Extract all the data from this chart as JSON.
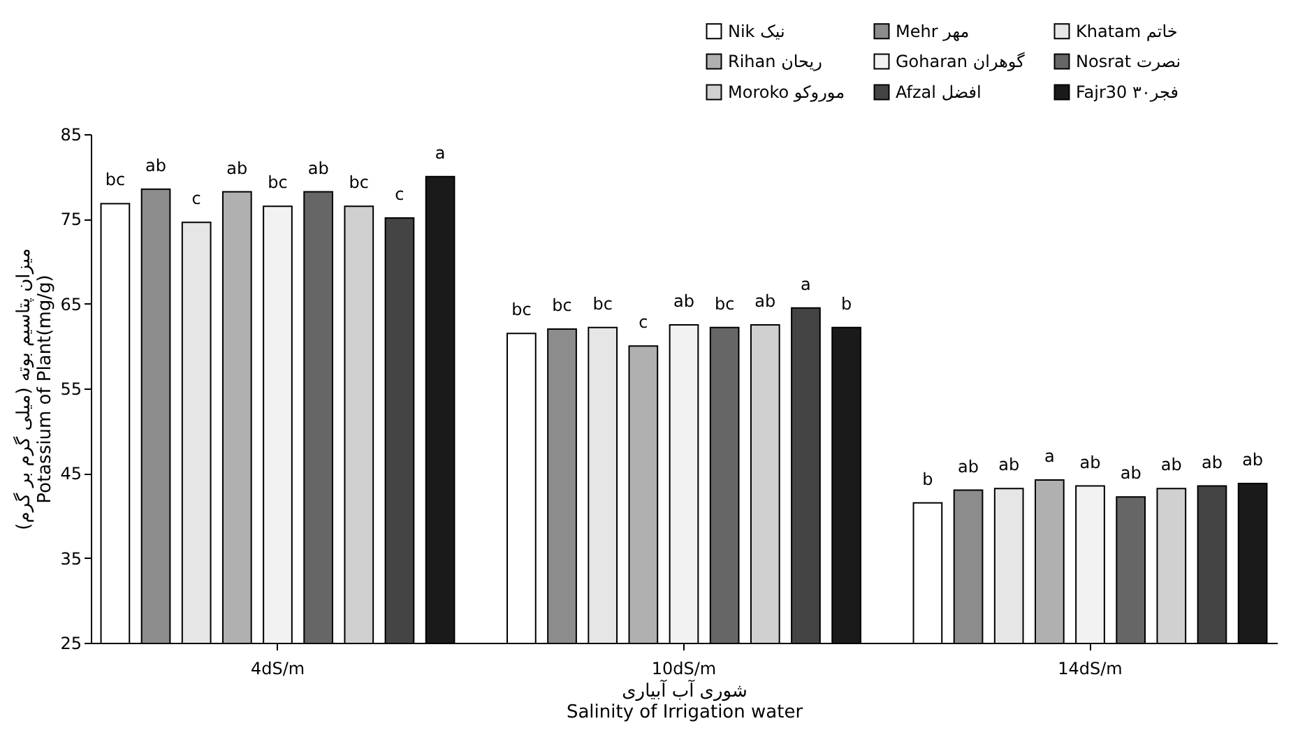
{
  "chart_data": {
    "type": "bar",
    "xlabel": "شوری آب آبیاری\nSalinity of Irrigation water",
    "ylabel": "میزان پتاسیم بوته (میلی گرم بر گرم)\nPotassium of Plant(mg/g)",
    "categories": [
      "4dS/m",
      "10dS/m",
      "14dS/m"
    ],
    "ylim": [
      25,
      85
    ],
    "yticks": [
      25,
      35,
      45,
      55,
      65,
      75,
      85
    ],
    "grid": false,
    "legend": "top right",
    "series": [
      {
        "name": "Nik   نیک",
        "color": "#ffffff",
        "values": [
          76.8,
          61.5,
          41.5
        ],
        "value_labels": [
          "bc",
          "bc",
          "b"
        ]
      },
      {
        "name": "Mehr   مهر",
        "color": "#8c8c8c",
        "values": [
          78.5,
          62.0,
          43.0
        ],
        "value_labels": [
          "ab",
          "bc",
          "ab"
        ]
      },
      {
        "name": "Khatam خاتم",
        "color": "#e6e6e6",
        "values": [
          74.6,
          62.2,
          43.2
        ],
        "value_labels": [
          "c",
          "bc",
          "ab"
        ]
      },
      {
        "name": "Rihan ریحان",
        "color": "#b0b0b0",
        "values": [
          78.2,
          60.0,
          44.2
        ],
        "value_labels": [
          "ab",
          "c",
          "a"
        ]
      },
      {
        "name": "Goharan گوهران",
        "color": "#f2f2f2",
        "values": [
          76.5,
          62.5,
          43.5
        ],
        "value_labels": [
          "bc",
          "ab",
          "ab"
        ]
      },
      {
        "name": "Nosrat نصرت",
        "color": "#666666",
        "values": [
          78.2,
          62.2,
          42.2
        ],
        "value_labels": [
          "ab",
          "bc",
          "ab"
        ]
      },
      {
        "name": "Moroko موروکو",
        "color": "#d0d0d0",
        "values": [
          76.5,
          62.5,
          43.2
        ],
        "value_labels": [
          "bc",
          "ab",
          "ab"
        ]
      },
      {
        "name": "Afzal افضل",
        "color": "#444444",
        "values": [
          75.1,
          64.5,
          43.5
        ],
        "value_labels": [
          "c",
          "a",
          "ab"
        ]
      },
      {
        "name": "Fajr30 فجر۳۰",
        "color": "#1a1a1a",
        "values": [
          80.0,
          62.2,
          43.8
        ],
        "value_labels": [
          "a",
          "b",
          "ab"
        ]
      }
    ]
  }
}
